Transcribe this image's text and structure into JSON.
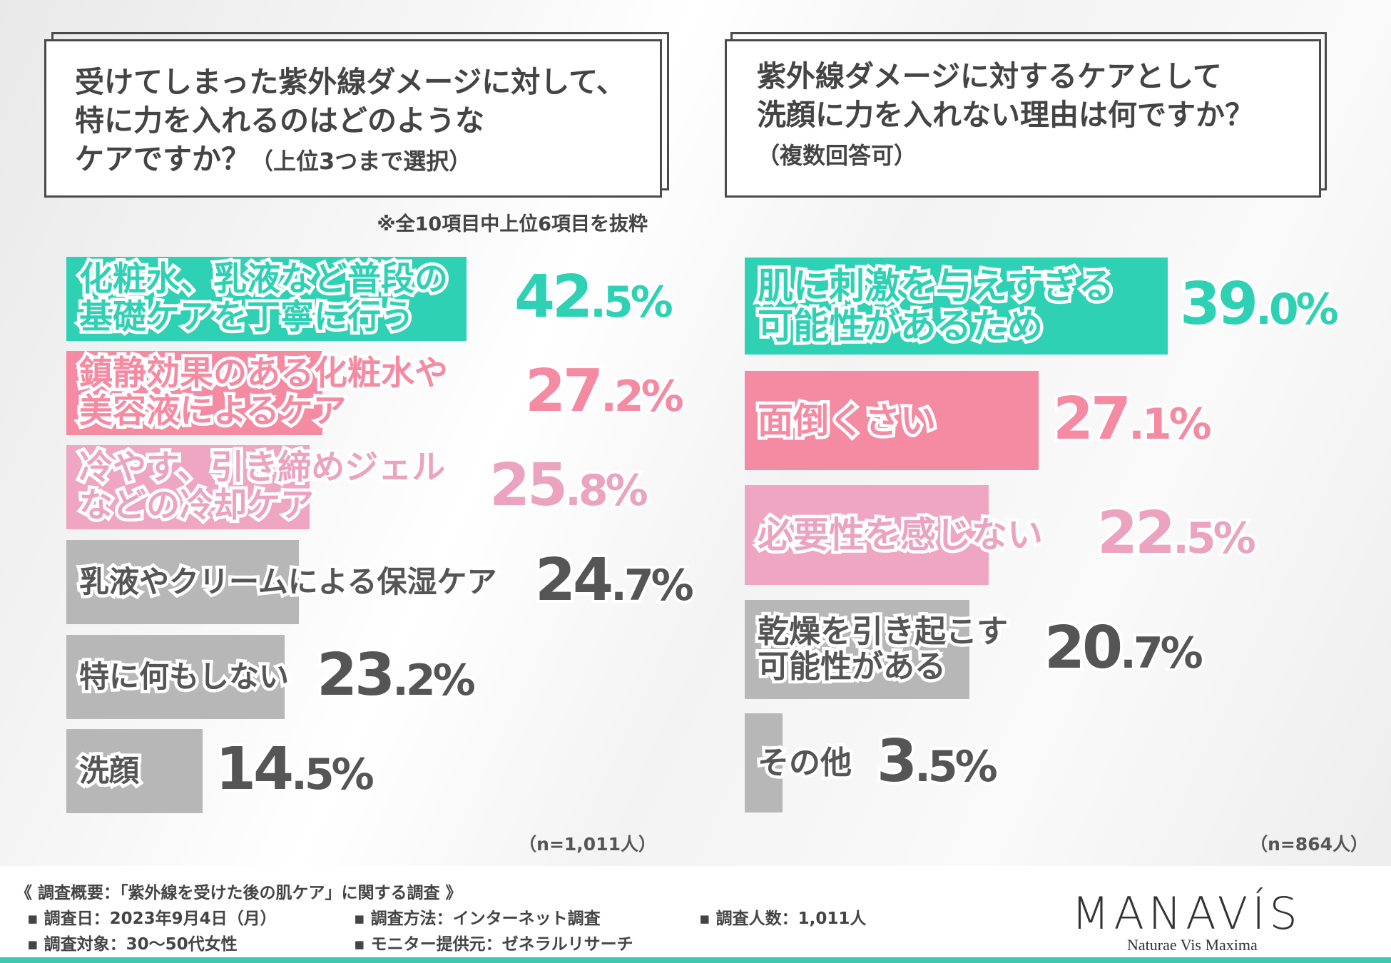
{
  "left_panel": {
    "title": "受けてしまった紫外線ダメージに対して、\n特に力を入れるのはどのような\nケアですか？",
    "subtitle": "（上位3つまで選択）",
    "note": "※全10項目中上位6項目を抜粋",
    "sample": "（n=1,011人）"
  },
  "right_panel": {
    "title": "紫外線ダメージに対するケアとして\n洗顔に力を入れない理由は何ですか？",
    "subtitle": "（複数回答可）",
    "sample": "（n=864人）"
  },
  "colors": {
    "teal": "#2fd1b5",
    "pink": "#f58aa3",
    "lightpink": "#eea6c2",
    "gray": "#b7b7b7"
  },
  "chart_data": [
    {
      "type": "bar",
      "orientation": "horizontal",
      "title": "受けてしまった紫外線ダメージに対して、特に力を入れるのはどのようなケアですか？（上位3つまで選択）",
      "unit": "%",
      "categories": [
        "化粧水、乳液など普段の\n基礎ケアを丁寧に行う",
        "鎮静効果のある化粧水や\n美容液によるケア",
        "冷やす、引き締めジェル\nなどの冷却ケア",
        "乳液やクリームによる保湿ケア",
        "特に何もしない",
        "洗顔"
      ],
      "values": [
        42.5,
        27.2,
        25.8,
        24.7,
        23.2,
        14.5
      ],
      "labels": [
        "42.5%",
        "27.2%",
        "25.8%",
        "24.7%",
        "23.2%",
        "14.5%"
      ],
      "bar_colors": [
        "teal",
        "pink",
        "lightpink",
        "gray",
        "gray",
        "gray"
      ]
    },
    {
      "type": "bar",
      "orientation": "horizontal",
      "title": "紫外線ダメージに対するケアとして洗顔に力を入れない理由は何ですか？（複数回答可）",
      "unit": "%",
      "categories": [
        "肌に刺激を与えすぎる\n可能性があるため",
        "面倒くさい",
        "必要性を感じない",
        "乾燥を引き起こす\n可能性がある",
        "その他"
      ],
      "values": [
        39.0,
        27.1,
        22.5,
        20.7,
        3.5
      ],
      "labels": [
        "39.0%",
        "27.1%",
        "22.5%",
        "20.7%",
        "3.5%"
      ],
      "bar_colors": [
        "teal",
        "pink",
        "lightpink",
        "gray",
        "gray"
      ]
    }
  ],
  "footer": {
    "heading": "《 調査概要：「紫外線を受けた後の肌ケア」に関する調査 》",
    "items": [
      "▪ 調査日：2023年9月4日（月）",
      "▪ 調査方法：インターネット調査",
      "▪ 調査人数：1,011人",
      "▪ 調査対象：30〜50代女性",
      "▪ モニター提供元：ゼネラルリサーチ"
    ],
    "logo": "MANAVÍS",
    "tagline": "Naturae Vis Maxima"
  }
}
